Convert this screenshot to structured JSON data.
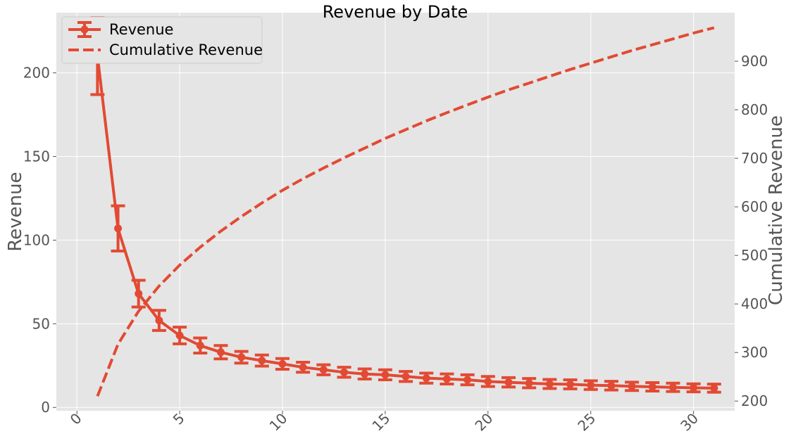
{
  "chart_data": {
    "type": "line",
    "title": "Revenue by Date",
    "xlabel": "",
    "ylabel": "Revenue",
    "y2label": "Cumulative Revenue",
    "xlim": [
      -1,
      32
    ],
    "ylim": [
      -2,
      236
    ],
    "y2lim": [
      180,
      1000
    ],
    "x_ticks": [
      0,
      5,
      10,
      15,
      20,
      25,
      30
    ],
    "y_ticks": [
      0,
      50,
      100,
      150,
      200
    ],
    "y2_ticks": [
      200,
      300,
      400,
      500,
      600,
      700,
      800,
      900
    ],
    "grid": true,
    "legend_position": "top-left",
    "colors": {
      "series": "#E24A33",
      "background": "#E5E5E5",
      "grid": "#FFFFFF"
    },
    "x": [
      1,
      2,
      3,
      4,
      5,
      6,
      7,
      8,
      9,
      10,
      11,
      12,
      13,
      14,
      15,
      16,
      17,
      18,
      19,
      20,
      21,
      22,
      23,
      24,
      25,
      26,
      27,
      28,
      29,
      30,
      31
    ],
    "series": [
      {
        "name": "Revenue",
        "style": "solid-with-error-bars",
        "axis": "left",
        "values": [
          210,
          107,
          68,
          52,
          43,
          37,
          33,
          30,
          28,
          26,
          24,
          22.5,
          21,
          20,
          19.5,
          18.5,
          17.5,
          17,
          16.5,
          15.5,
          15,
          14.5,
          14,
          13.8,
          13.3,
          13,
          12.6,
          12.3,
          12,
          11.7,
          11.5
        ],
        "errors": [
          23,
          13.5,
          8,
          6,
          5,
          4.5,
          4,
          3.5,
          3.3,
          3.2,
          3,
          3,
          3,
          3,
          3,
          3,
          3,
          3,
          3,
          3,
          2.8,
          2.8,
          2.7,
          2.7,
          2.6,
          2.6,
          2.5,
          2.5,
          2.5,
          2.4,
          2.4
        ]
      },
      {
        "name": "Cumulative Revenue",
        "style": "dashed",
        "axis": "right",
        "values": [
          210,
          317,
          385,
          437,
          480,
          517,
          550,
          580,
          608,
          634,
          658,
          680,
          701,
          721,
          741,
          759,
          777,
          794,
          810,
          826,
          841,
          855,
          869,
          883,
          896,
          909,
          922,
          934,
          946,
          958,
          969
        ]
      }
    ]
  }
}
